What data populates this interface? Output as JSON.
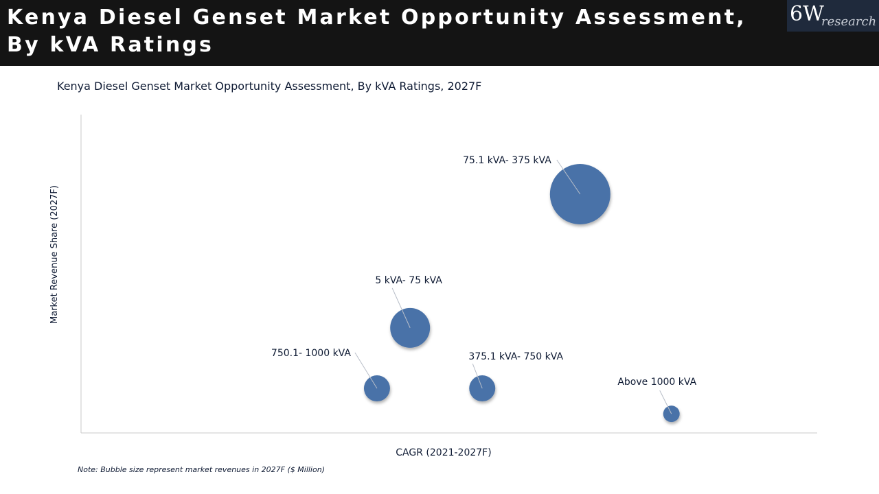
{
  "header": {
    "title": "Kenya Diesel Genset Market Opportunity Assessment, By kVA Ratings",
    "logo_main": "6W",
    "logo_sub": "research"
  },
  "footnote": "Note: Bubble size represent market revenues in 2027F ($ Million)",
  "colors": {
    "bubble": "#4a72a8",
    "header_bg": "#141414",
    "axis": "#c8c8c8"
  },
  "chart_data": {
    "type": "scatter",
    "title": "Kenya Diesel Genset Market Opportunity Assessment, By kVA Ratings, 2027F",
    "xlabel": "CAGR (2021-2027F)",
    "ylabel": "Market Revenue Share (2027F)",
    "grid": false,
    "legend": "none",
    "points": [
      {
        "label": "75.1 kVA- 375 kVA",
        "x": 0.678,
        "y": 0.75,
        "size": 44
      },
      {
        "label": "5 kVA- 75 kVA",
        "x": 0.447,
        "y": 0.33,
        "size": 29
      },
      {
        "label": "750.1- 1000 kVA",
        "x": 0.402,
        "y": 0.14,
        "size": 19
      },
      {
        "label": "375.1 kVA- 750 kVA",
        "x": 0.545,
        "y": 0.14,
        "size": 19
      },
      {
        "label": "Above 1000 kVA",
        "x": 0.802,
        "y": 0.06,
        "size": 12
      }
    ]
  }
}
